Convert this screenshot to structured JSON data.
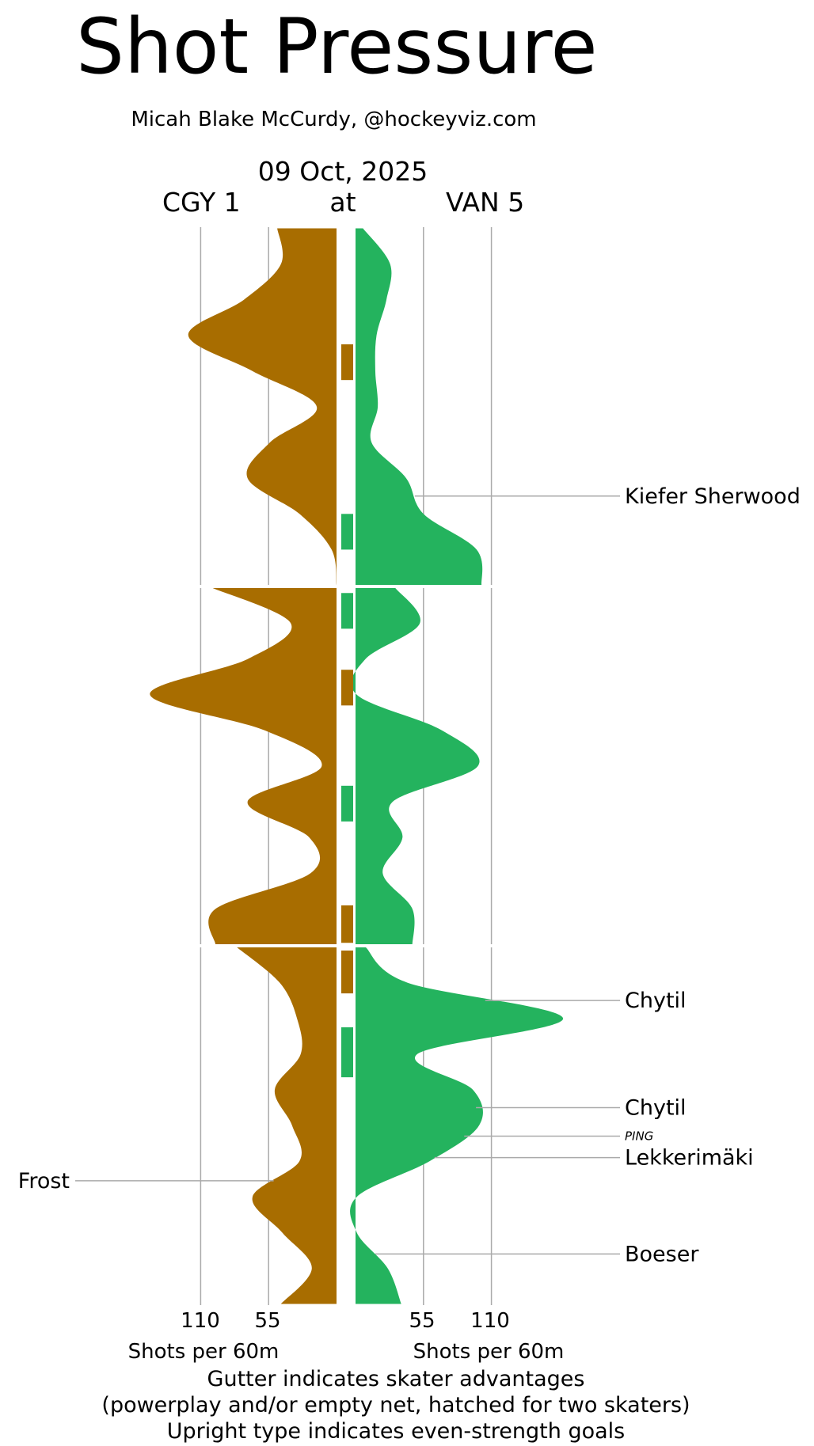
{
  "title": "Shot Pressure",
  "byline": "Micah Blake McCurdy, @hockeyviz.com",
  "chart_data": {
    "type": "area",
    "date": "09 Oct, 2025",
    "away_team": "CGY 1",
    "at": "at",
    "home_team": "VAN 5",
    "x_ticks": [
      "110",
      "55",
      "55",
      "110"
    ],
    "xlabel_left": "Shots per 60m",
    "xlabel_right": "Shots per 60m",
    "xlim": [
      0,
      110
    ],
    "periods": 3,
    "colors": {
      "away": "#A86D00",
      "home": "#24B35E",
      "grid": "#aaaaaa"
    },
    "series": [
      {
        "name": "CGY 1",
        "period_minutes": [
          [
            0,
            2,
            4,
            6,
            8,
            10,
            12,
            14,
            16,
            18,
            20
          ],
          [
            0,
            2,
            4,
            6,
            8,
            10,
            12,
            14,
            16,
            18,
            20
          ],
          [
            0,
            2,
            4,
            6,
            8,
            10,
            12,
            14,
            16,
            18,
            20
          ]
        ],
        "values": [
          [
            48,
            45,
            75,
            120,
            68,
            16,
            54,
            72,
            30,
            4,
            0
          ],
          [
            101,
            37,
            72,
            151,
            58,
            12,
            72,
            22,
            21,
            98,
            98
          ],
          [
            81,
            46,
            32,
            29,
            50,
            36,
            30,
            68,
            44,
            20,
            45
          ]
        ]
      },
      {
        "name": "VAN 5",
        "period_minutes": [
          [
            0,
            2,
            4,
            6,
            8,
            10,
            12,
            14,
            16,
            18,
            20
          ],
          [
            0,
            2,
            4,
            6,
            8,
            10,
            12,
            14,
            16,
            18,
            20
          ],
          [
            0,
            2,
            4,
            6,
            8,
            10,
            12,
            14,
            16,
            18,
            20
          ]
        ],
        "values": [
          [
            6,
            28,
            25,
            17,
            16,
            18,
            13,
            41,
            55,
            98,
            102
          ],
          [
            32,
            52,
            8,
            1,
            70,
            99,
            30,
            38,
            22,
            46,
            46
          ],
          [
            8,
            42,
            168,
            50,
            95,
            100,
            60,
            1,
            1,
            26,
            37
          ]
        ]
      }
    ],
    "gutter": {
      "description": "skater advantage periods",
      "segments": [
        {
          "period": 1,
          "start": 6.5,
          "end": 8.5,
          "team": "CGY 1"
        },
        {
          "period": 1,
          "start": 16,
          "end": 18,
          "team": "VAN 5"
        },
        {
          "period": 2,
          "start": 0.3,
          "end": 2.3,
          "team": "VAN 5"
        },
        {
          "period": 2,
          "start": 4.6,
          "end": 6.6,
          "team": "CGY 1"
        },
        {
          "period": 2,
          "start": 11.1,
          "end": 13.1,
          "team": "VAN 5"
        },
        {
          "period": 2,
          "start": 17.8,
          "end": 19.9,
          "team": "CGY 1"
        },
        {
          "period": 3,
          "start": 0.2,
          "end": 2.6,
          "team": "CGY 1"
        },
        {
          "period": 3,
          "start": 4.5,
          "end": 7.3,
          "team": "VAN 5"
        }
      ]
    },
    "goals": [
      {
        "team": "VAN 5",
        "label": "Kiefer Sherwood",
        "period": 1,
        "minute": 15.0,
        "strength": "even"
      },
      {
        "team": "VAN 5",
        "label": "Chytil",
        "period": 3,
        "minute": 3.0,
        "strength": "even"
      },
      {
        "team": "VAN 5",
        "label": "Chytil",
        "period": 3,
        "minute": 9.0,
        "strength": "even"
      },
      {
        "team": "VAN 5",
        "label": "PING",
        "period": 3,
        "minute": 10.6,
        "strength": "other"
      },
      {
        "team": "VAN 5",
        "label": "Lekkerimäki",
        "period": 3,
        "minute": 11.8,
        "strength": "even"
      },
      {
        "team": "CGY 1",
        "label": "Frost",
        "period": 3,
        "minute": 13.1,
        "strength": "even"
      },
      {
        "team": "VAN 5",
        "label": "Boeser",
        "period": 3,
        "minute": 17.2,
        "strength": "even"
      }
    ]
  },
  "footer": {
    "line1": "Gutter indicates skater advantages",
    "line2": "(powerplay and/or empty net, hatched for two skaters)",
    "line3": "Upright type indicates even-strength goals"
  }
}
